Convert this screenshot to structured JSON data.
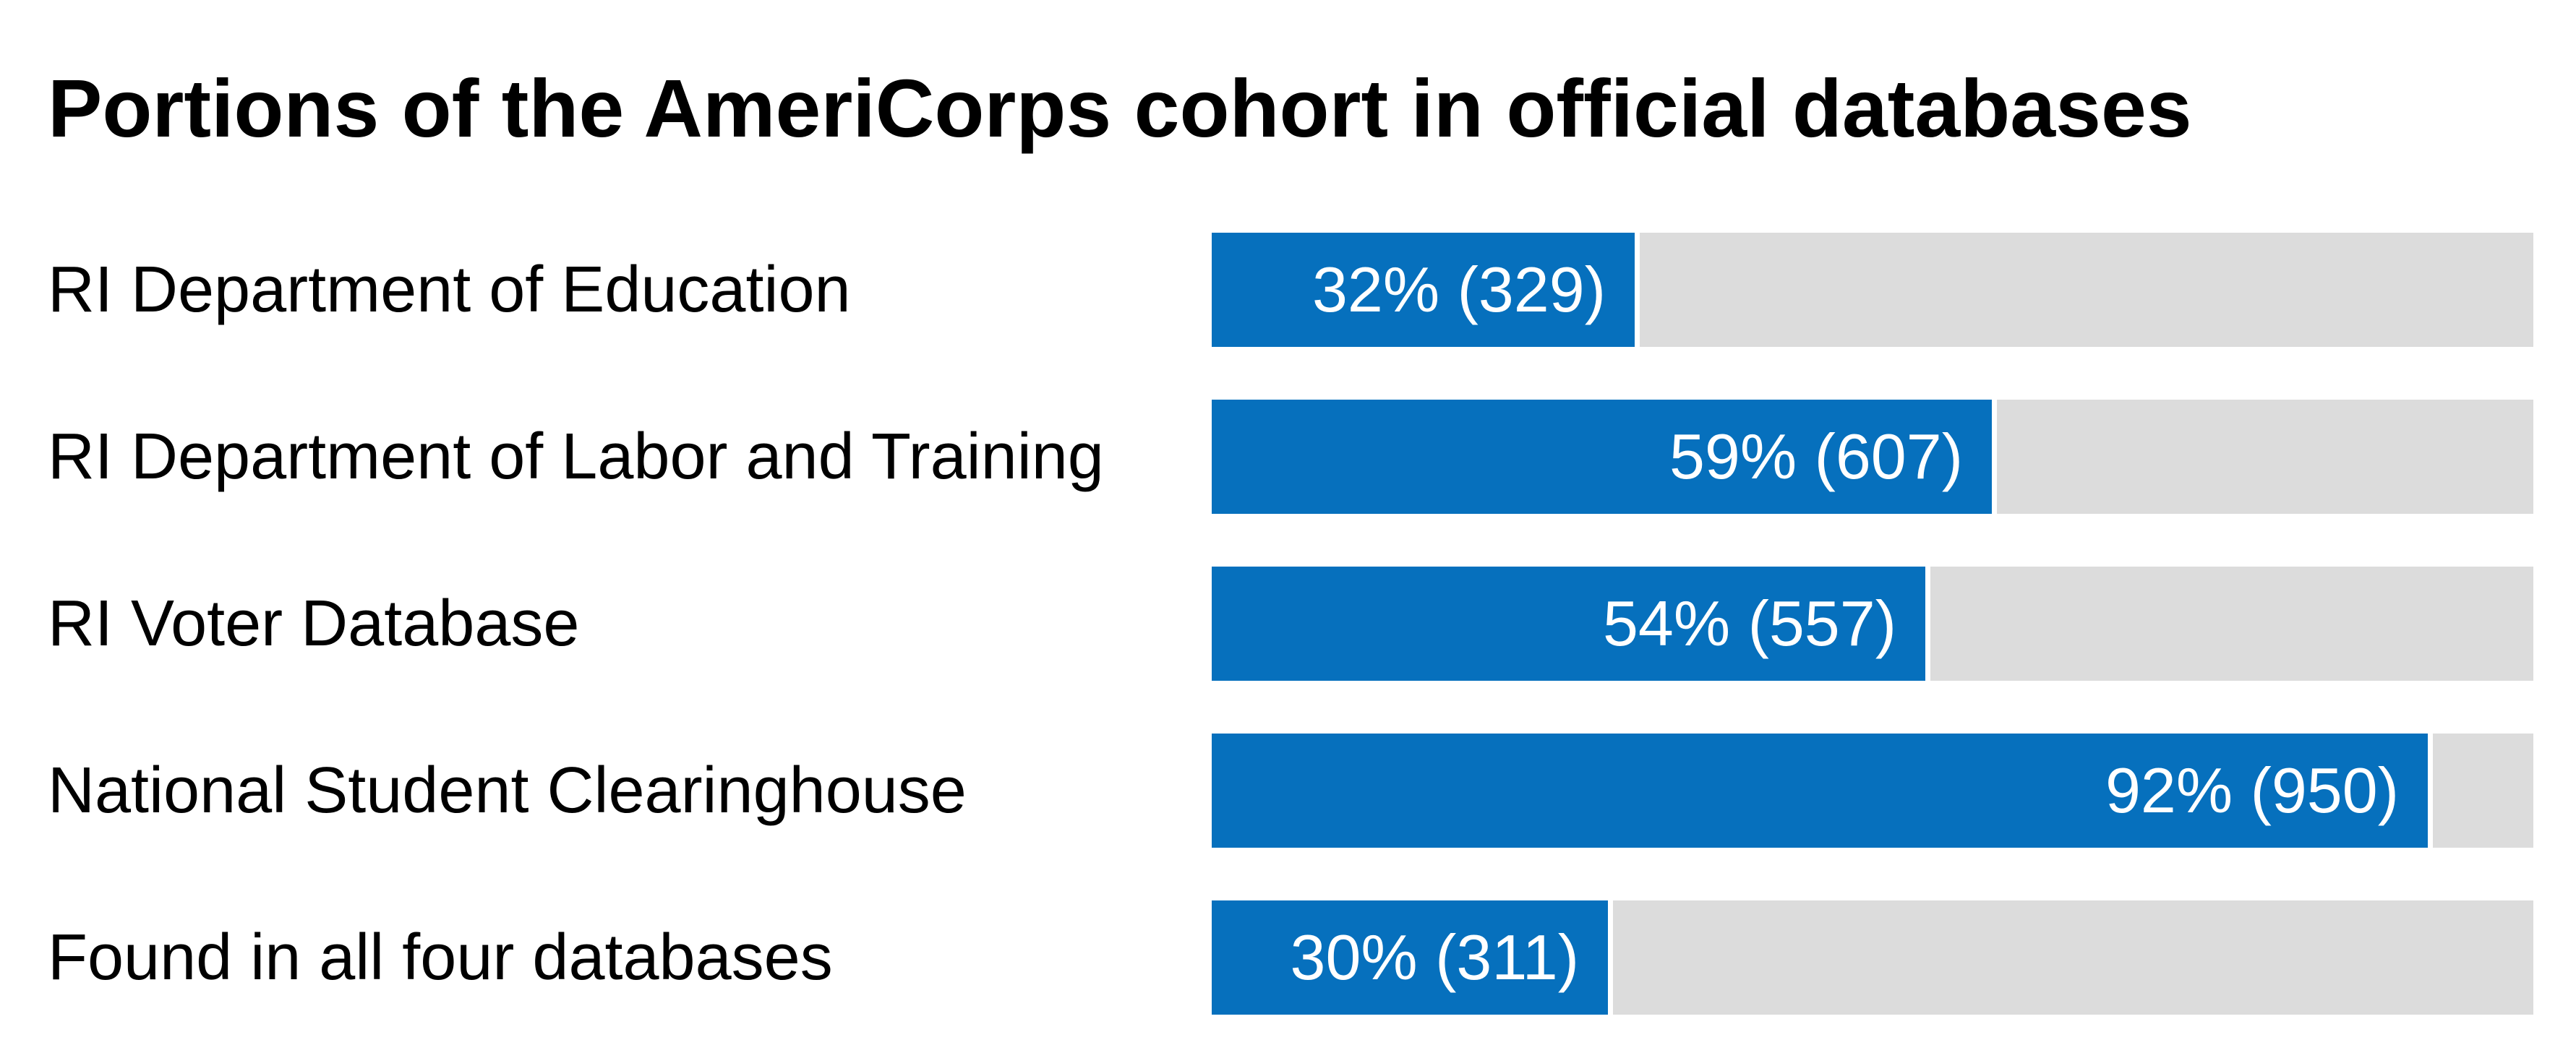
{
  "chart_data": {
    "type": "bar",
    "orientation": "horizontal",
    "title": "Portions of the AmeriCorps cohort in official databases",
    "categories": [
      "RI Department of Education",
      "RI Department of Labor and Training",
      "RI Voter Database",
      "National Student Clearinghouse",
      "Found in all four databases"
    ],
    "values": [
      32,
      59,
      54,
      92,
      30
    ],
    "counts": [
      329,
      607,
      557,
      950,
      311
    ],
    "data_labels": [
      "32% (329)",
      "59% (607)",
      "54% (557)",
      "92% (950)",
      "30% (311)"
    ],
    "unit": "%",
    "xlim": [
      0,
      100
    ],
    "grid": false,
    "legend": "none",
    "colors": {
      "bar": "#0670bd",
      "track": "#dcdcdc",
      "label_text": "#ffffff"
    }
  }
}
